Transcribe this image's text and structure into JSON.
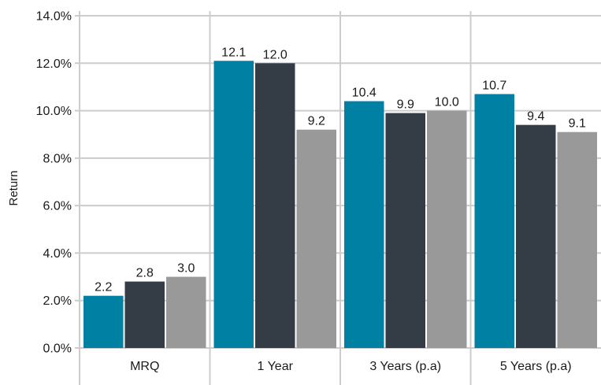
{
  "chart_data": {
    "type": "bar",
    "title": "",
    "xlabel": "",
    "ylabel": "Return",
    "ylim": [
      0,
      14
    ],
    "y_tick_step": 2,
    "y_tick_format": "percent_1dp",
    "y_tick_labels": [
      "0.0%",
      "2.0%",
      "4.0%",
      "6.0%",
      "8.0%",
      "10.0%",
      "12.0%",
      "14.0%"
    ],
    "grid": true,
    "legend": "none",
    "categories": [
      "MRQ",
      "1 Year",
      "3 Years (p.a)",
      "5 Years (p.a)"
    ],
    "series": [
      {
        "values": [
          2.2,
          12.1,
          10.4,
          10.7
        ],
        "labels": [
          "2.2",
          "12.1",
          "10.4",
          "10.7"
        ],
        "color": "#0080a3"
      },
      {
        "values": [
          2.8,
          12.0,
          9.9,
          9.4
        ],
        "labels": [
          "2.8",
          "12.0",
          "9.9",
          "9.4"
        ],
        "color": "#343d46"
      },
      {
        "values": [
          3.0,
          9.2,
          10.0,
          9.1
        ],
        "labels": [
          "3.0",
          "9.2",
          "10.0",
          "9.1"
        ],
        "color": "#999999"
      }
    ],
    "colors": {
      "grid": "#cccccc",
      "text": "#1a1a1a",
      "background": "#ffffff"
    }
  }
}
